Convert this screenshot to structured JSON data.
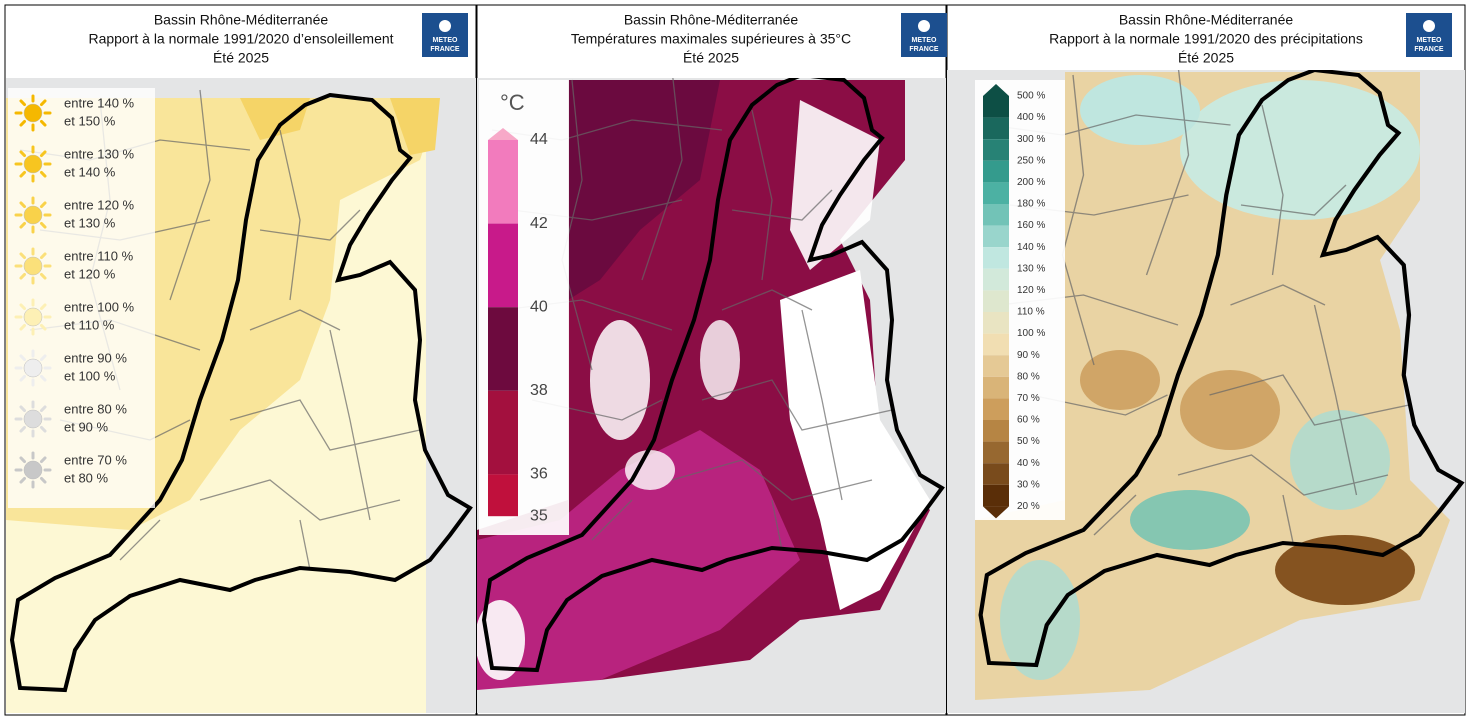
{
  "panels": [
    {
      "title": [
        "Bassin Rhône-Méditerranée",
        "Rapport à la normale 1991/2020 d’ensoleillement",
        "Été 2025"
      ],
      "logo": [
        "METEO",
        "FRANCE"
      ],
      "legend": [
        [
          "entre 140 %",
          "et 150 %"
        ],
        [
          "entre 130 %",
          "et 140 %"
        ],
        [
          "entre 120 %",
          "et 130 %"
        ],
        [
          "entre 110 %",
          "et 120 %"
        ],
        [
          "entre 100 %",
          "et 110 %"
        ],
        [
          "entre 90 %",
          "et 100 %"
        ],
        [
          "entre 80 %",
          "et 90 %"
        ],
        [
          "entre 70 %",
          "et 80 %"
        ]
      ]
    },
    {
      "title": [
        "Bassin Rhône-Méditerranée",
        "Températures maximales supérieures à 35°C",
        "Été 2025"
      ],
      "logo": [
        "METEO",
        "FRANCE"
      ],
      "legend_unit": "°C",
      "legend": [
        44,
        42,
        40,
        38,
        36,
        35
      ]
    },
    {
      "title": [
        "Bassin Rhône-Méditerranée",
        "Rapport à la normale 1991/2020 des précipitations",
        "Été 2025"
      ],
      "logo": [
        "METEO",
        "FRANCE"
      ],
      "legend": [
        "500 %",
        "400 %",
        "300 %",
        "250 %",
        "200 %",
        "180 %",
        "160 %",
        "140 %",
        "130 %",
        "120 %",
        "110 %",
        "100 %",
        "90 %",
        "80 %",
        "70 %",
        "60 %",
        "50 %",
        "40 %",
        "30 %",
        "20 %"
      ]
    }
  ]
}
